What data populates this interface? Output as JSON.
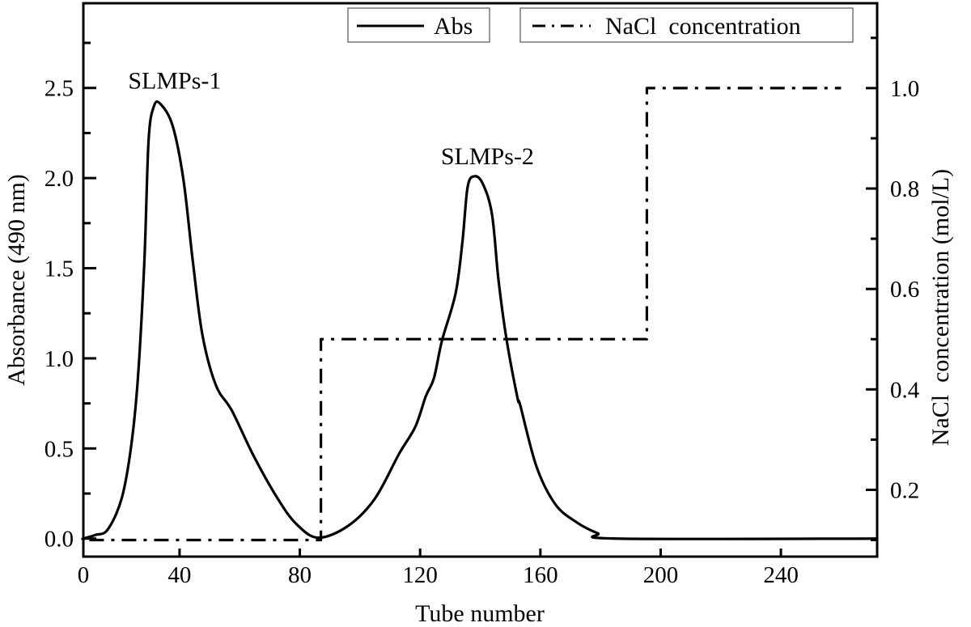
{
  "chart_data": {
    "type": "line",
    "xlabel": "Tube number",
    "ylabel": "Absorbance (490 nm)",
    "y2label": "NaCl  concentration (mol/L)",
    "xlim": [
      8,
      272
    ],
    "ylim": [
      -0.1,
      2.97
    ],
    "y2lim": [
      0.067,
      1.169
    ],
    "xticks": [
      0,
      40,
      80,
      120,
      160,
      200,
      240
    ],
    "xtick_labels": [
      "0",
      "40",
      "80",
      "120",
      "160",
      "200",
      "240"
    ],
    "yticks": [
      0.0,
      0.5,
      1.0,
      1.5,
      2.0,
      2.5
    ],
    "ytick_labels": [
      "0.0",
      "0.5",
      "1.0",
      "1.5",
      "2.0",
      "2.5"
    ],
    "y2ticks": [
      0.2,
      0.4,
      0.6,
      0.8,
      1.0
    ],
    "y2tick_labels": [
      "0.2",
      "0.4",
      "0.6",
      "0.8",
      "1.0"
    ],
    "grid": false,
    "legend_position": "top",
    "series": [
      {
        "name": "Abs",
        "axis": "left",
        "style": "solid",
        "color": "#000000",
        "x": [
          2,
          7.3,
          12,
          16.1,
          20.7,
          23.8,
          26.1,
          28.3,
          29.7,
          31.5,
          33.7,
          37.7,
          41.3,
          44.4,
          47.6,
          52.1,
          57.4,
          64.6,
          72.7,
          78.9,
          86.1,
          96,
          104.9,
          113,
          118.4,
          121.9,
          124.6,
          127.3,
          131.8,
          134.1,
          135.8,
          138,
          140.8,
          143.9,
          146.1,
          148.8,
          152.4,
          153.3,
          158.7,
          165,
          172.1,
          179,
          185.6,
          272
        ],
        "y": [
          0.0,
          0.0,
          0.02,
          0.05,
          0.22,
          0.5,
          0.88,
          1.54,
          2.21,
          2.4,
          2.41,
          2.29,
          1.99,
          1.54,
          1.13,
          0.85,
          0.71,
          0.46,
          0.22,
          0.08,
          0.005,
          0.07,
          0.22,
          0.47,
          0.62,
          0.79,
          0.89,
          1.1,
          1.36,
          1.65,
          1.95,
          2.01,
          1.97,
          1.8,
          1.43,
          1.1,
          0.78,
          0.74,
          0.4,
          0.19,
          0.09,
          0.03,
          0.0,
          0.0
        ]
      },
      {
        "name": "NaCl  concentration",
        "axis": "right",
        "style": "dash-dot",
        "color": "#000000",
        "x": [
          10,
          87,
          87,
          195.4,
          195.4,
          260
        ],
        "y": [
          0.1,
          0.1,
          0.5,
          0.5,
          1.0,
          1.0
        ]
      }
    ],
    "annotations": [
      {
        "text": "SLMPs-1",
        "x": 33,
        "y": 2.55
      },
      {
        "text": "SLMPs-2",
        "x": 137,
        "y": 2.13
      }
    ]
  }
}
